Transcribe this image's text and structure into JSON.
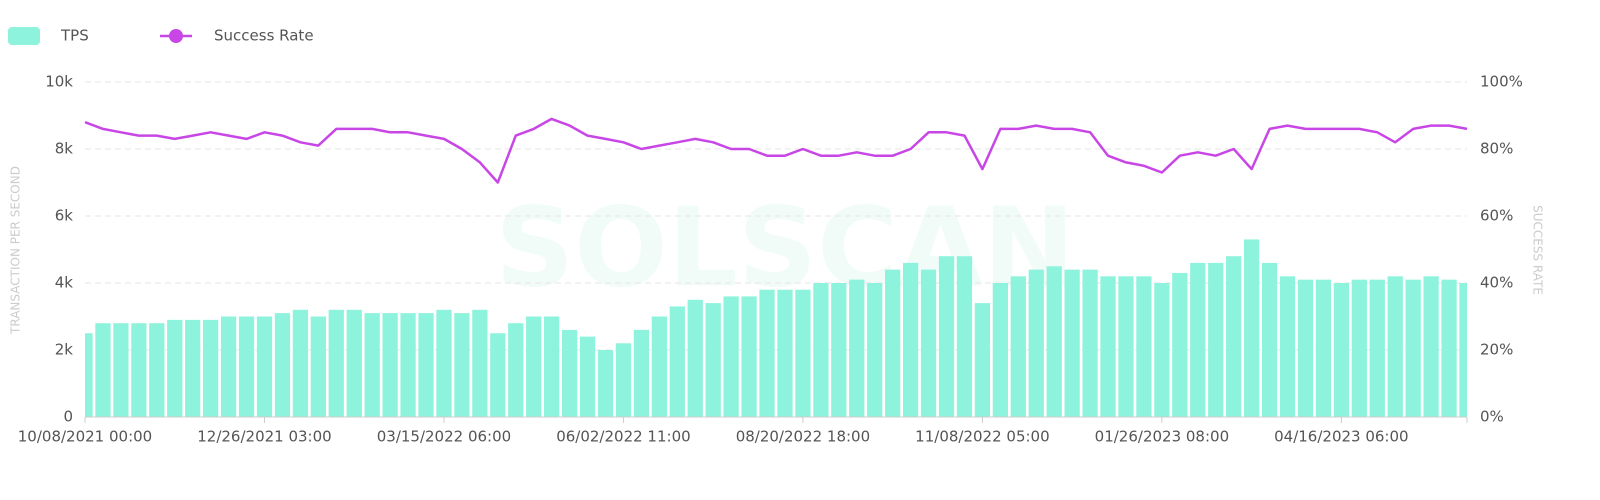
{
  "chart_data": {
    "type": "bar",
    "watermark": "SOLSCAN",
    "ylabel": "TRANSACTION PER SECOND",
    "y2label": "SUCCESS RATE",
    "categories": [
      "10/08/2021 00:00",
      null,
      null,
      null,
      null,
      null,
      null,
      null,
      null,
      null,
      "12/26/2021 03:00",
      null,
      null,
      null,
      null,
      null,
      null,
      null,
      null,
      null,
      "03/15/2022 06:00",
      null,
      null,
      null,
      null,
      null,
      null,
      null,
      null,
      null,
      "06/02/2022 11:00",
      null,
      null,
      null,
      null,
      null,
      null,
      null,
      null,
      null,
      "08/20/2022 18:00",
      null,
      null,
      null,
      null,
      null,
      null,
      null,
      null,
      null,
      "11/08/2022 05:00",
      null,
      null,
      null,
      null,
      null,
      null,
      null,
      null,
      null,
      "01/26/2023 08:00",
      null,
      null,
      null,
      null,
      null,
      null,
      null,
      null,
      null,
      "04/16/2023 06:00",
      null,
      null,
      null,
      null,
      null,
      null,
      null
    ],
    "series": [
      {
        "name": "TPS",
        "type": "bar",
        "color": "#8ef3dc",
        "values": [
          2500,
          2800,
          2800,
          2800,
          2800,
          2900,
          2900,
          2900,
          3000,
          3000,
          3000,
          3100,
          3200,
          3000,
          3200,
          3200,
          3100,
          3100,
          3100,
          3100,
          3200,
          3100,
          3200,
          2500,
          2800,
          3000,
          3000,
          2600,
          2400,
          2000,
          2200,
          2600,
          3000,
          3300,
          3500,
          3400,
          3600,
          3600,
          3800,
          3800,
          3800,
          4000,
          4000,
          4100,
          4000,
          4400,
          4600,
          4400,
          4800,
          4800,
          3400,
          4000,
          4200,
          4400,
          4500,
          4400,
          4400,
          4200,
          4200,
          4200,
          4000,
          4300,
          4600,
          4600,
          4800,
          5300,
          4600,
          4200,
          4100,
          4100,
          4000,
          4100,
          4100,
          4200,
          4100,
          4200,
          4100,
          4000
        ]
      },
      {
        "name": "Success Rate",
        "type": "line",
        "axis": "y2",
        "color": "#c846e6",
        "values": [
          88,
          86,
          85,
          84,
          84,
          83,
          84,
          85,
          84,
          83,
          85,
          84,
          82,
          81,
          86,
          86,
          86,
          85,
          85,
          84,
          83,
          80,
          76,
          70,
          84,
          86,
          89,
          87,
          84,
          83,
          82,
          80,
          81,
          82,
          83,
          82,
          80,
          80,
          78,
          78,
          80,
          78,
          78,
          79,
          78,
          78,
          80,
          85,
          85,
          84,
          74,
          86,
          86,
          87,
          86,
          86,
          85,
          78,
          76,
          75,
          73,
          78,
          79,
          78,
          80,
          74,
          86,
          87,
          86,
          86,
          86,
          86,
          85,
          82,
          86,
          87,
          87,
          86
        ]
      }
    ],
    "ylim": [
      0,
      10000
    ],
    "yticks": [
      0,
      {
        "value": 2000,
        "label": "2k"
      },
      {
        "value": 4000,
        "label": "4k"
      },
      {
        "value": 6000,
        "label": "6k"
      },
      {
        "value": 8000,
        "label": "8k"
      },
      {
        "value": 10000,
        "label": "10k"
      }
    ],
    "y2lim": [
      0,
      100
    ],
    "y2ticks": [
      {
        "value": 0,
        "label": "0%"
      },
      {
        "value": 20,
        "label": "20%"
      },
      {
        "value": 40,
        "label": "40%"
      },
      {
        "value": 60,
        "label": "60%"
      },
      {
        "value": 80,
        "label": "80%"
      },
      {
        "value": 100,
        "label": "100%"
      }
    ],
    "grid": true,
    "legend": "top-left"
  }
}
